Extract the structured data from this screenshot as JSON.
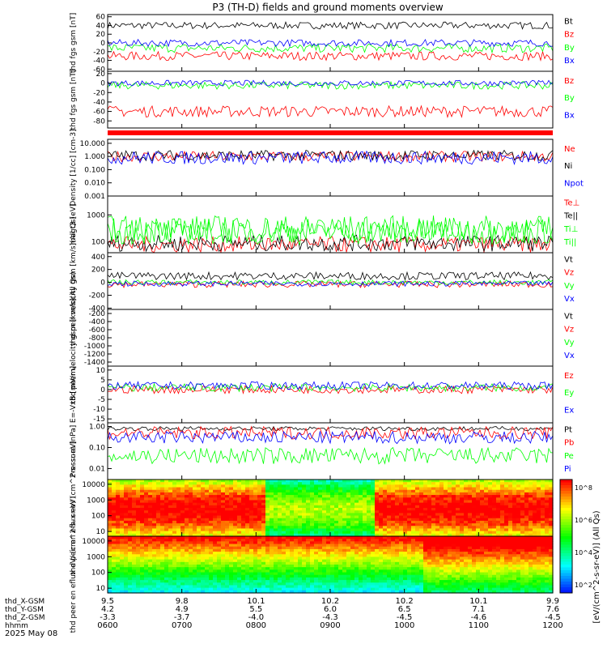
{
  "title": "P3 (TH-D) fields and ground moments overview",
  "date_label": "2025 May 08",
  "colorbar_label": "[eV/(cm^2-s-sr-eV)] (All Qs)",
  "colorbar_ticks": [
    "10^8",
    "10^6",
    "10^4",
    "10^2"
  ],
  "colors": {
    "black": "#000000",
    "red": "#ff0000",
    "green": "#00ff00",
    "blue": "#0000ff"
  },
  "chart_data": [
    {
      "type": "line",
      "ylabel": "thd fgs gsm [nT]",
      "yticks": [
        60,
        40,
        20,
        0,
        -20,
        -40,
        -60
      ],
      "ylim": [
        -65,
        65
      ],
      "series": [
        {
          "name": "Bt",
          "color": "black",
          "base": 40,
          "noise": 8
        },
        {
          "name": "Bz",
          "color": "red",
          "base": -30,
          "noise": 10
        },
        {
          "name": "By",
          "color": "green",
          "base": -12,
          "noise": 10
        },
        {
          "name": "Bx",
          "color": "blue",
          "base": 0,
          "noise": 8
        }
      ]
    },
    {
      "type": "line",
      "ylabel": "thd fgs gsm [nT]",
      "yticks": [
        20,
        0,
        -20,
        -40,
        -60,
        -80
      ],
      "ylim": [
        -95,
        25
      ],
      "series": [
        {
          "name": "Bz",
          "color": "red",
          "base": -60,
          "noise": 12
        },
        {
          "name": "By",
          "color": "green",
          "base": -5,
          "noise": 8
        },
        {
          "name": "Bx",
          "color": "blue",
          "base": 0,
          "noise": 6
        }
      ]
    },
    {
      "type": "line",
      "ylabel": "Density [1/cc] [cm-3]",
      "log": true,
      "yticks": [
        "10.000",
        "1.000",
        "0.100",
        "0.010",
        "0.001"
      ],
      "ylim": [
        0.001,
        20
      ],
      "series": [
        {
          "name": "Ne",
          "color": "red",
          "base": 1,
          "noise": 0.4
        },
        {
          "name": "Ni",
          "color": "black",
          "base": 1.2,
          "noise": 0.4
        },
        {
          "name": "Npot",
          "color": "blue",
          "base": 0.8,
          "noise": 0.5
        }
      ]
    },
    {
      "type": "line",
      "ylabel": "magt3 [eV]",
      "log": true,
      "yticks": [
        "1000",
        "100"
      ],
      "ylim": [
        40,
        5000
      ],
      "series": [
        {
          "name": "Te⊥",
          "color": "red",
          "base": 80,
          "noise": 0.3
        },
        {
          "name": "Te||",
          "color": "black",
          "base": 90,
          "noise": 0.3
        },
        {
          "name": "Ti⊥",
          "color": "green",
          "base": 300,
          "noise": 0.5
        },
        {
          "name": "Ti||",
          "color": "green",
          "base": 250,
          "noise": 0.5
        }
      ]
    },
    {
      "type": "line",
      "ylabel": "thd peir velocity gsm [km/s](All Qs)",
      "yticks": [
        400,
        200,
        0,
        -200,
        -400
      ],
      "ylim": [
        -420,
        460
      ],
      "series": [
        {
          "name": "Vt",
          "color": "black",
          "base": 100,
          "noise": 60
        },
        {
          "name": "Vz",
          "color": "red",
          "base": -30,
          "noise": 50
        },
        {
          "name": "Vy",
          "color": "green",
          "base": 0,
          "noise": 40
        },
        {
          "name": "Vx",
          "color": "blue",
          "base": -20,
          "noise": 40
        }
      ]
    },
    {
      "type": "line",
      "ylabel": "thd peer velocity gsm [km/s](All Qs)",
      "yticks": [
        -200,
        -400,
        -600,
        -800,
        -1000,
        -1200,
        -1400
      ],
      "ylim": [
        -1500,
        -100
      ],
      "series": [
        {
          "name": "Vt",
          "color": "black"
        },
        {
          "name": "Vz",
          "color": "red"
        },
        {
          "name": "Vy",
          "color": "green"
        },
        {
          "name": "Vx",
          "color": "blue"
        }
      ]
    },
    {
      "type": "line",
      "ylabel": "E=-VxB [mV/m]",
      "yticks": [
        10,
        5,
        0,
        -5,
        -10,
        -15
      ],
      "ylim": [
        -17,
        12
      ],
      "series": [
        {
          "name": "Ez",
          "color": "red",
          "base": 0,
          "noise": 2
        },
        {
          "name": "Ey",
          "color": "green",
          "base": 1,
          "noise": 2
        },
        {
          "name": "Ex",
          "color": "blue",
          "base": 2,
          "noise": 2
        }
      ]
    },
    {
      "type": "line",
      "ylabel": "Pressure [nPa]",
      "log": true,
      "yticks": [
        "1.00",
        "0.10",
        "0.01"
      ],
      "ylim": [
        0.003,
        1.5
      ],
      "series": [
        {
          "name": "Pt",
          "color": "black",
          "base": 0.8,
          "noise": 0.1
        },
        {
          "name": "Pb",
          "color": "red",
          "base": 0.5,
          "noise": 0.3
        },
        {
          "name": "Pe",
          "color": "green",
          "base": 0.04,
          "noise": 0.4
        },
        {
          "name": "Pi",
          "color": "blue",
          "base": 0.3,
          "noise": 0.3
        }
      ]
    },
    {
      "type": "heatmap",
      "ylabel": "thd peir en eflux eV/ (cm^2-s- sr-eV)",
      "log": true,
      "yticks": [
        "10000",
        "1000",
        "100",
        "10"
      ],
      "ylim": [
        5,
        20000
      ]
    },
    {
      "type": "heatmap",
      "ylabel": "thd peer en eflux eV/ (cm^2-s- sr-eV)",
      "log": true,
      "yticks": [
        "10000",
        "1000",
        "100",
        "10"
      ],
      "ylim": [
        5,
        20000
      ]
    }
  ],
  "ephemeris": {
    "labels": [
      "thd_X-GSM",
      "thd_Y-GSM",
      "thd_Z-GSM",
      "hhmm"
    ],
    "x": [
      "9.5",
      "9.8",
      "10.1",
      "10.2",
      "10.2",
      "10.1",
      "9.9"
    ],
    "y": [
      "4.2",
      "4.9",
      "5.5",
      "6.0",
      "6.5",
      "7.1",
      "7.6"
    ],
    "z": [
      "-3.3",
      "-3.7",
      "-4.0",
      "-4.3",
      "-4.5",
      "-4.6",
      "-4.5"
    ],
    "hhmm": [
      "0600",
      "0700",
      "0800",
      "0900",
      "1000",
      "1100",
      "1200"
    ]
  }
}
